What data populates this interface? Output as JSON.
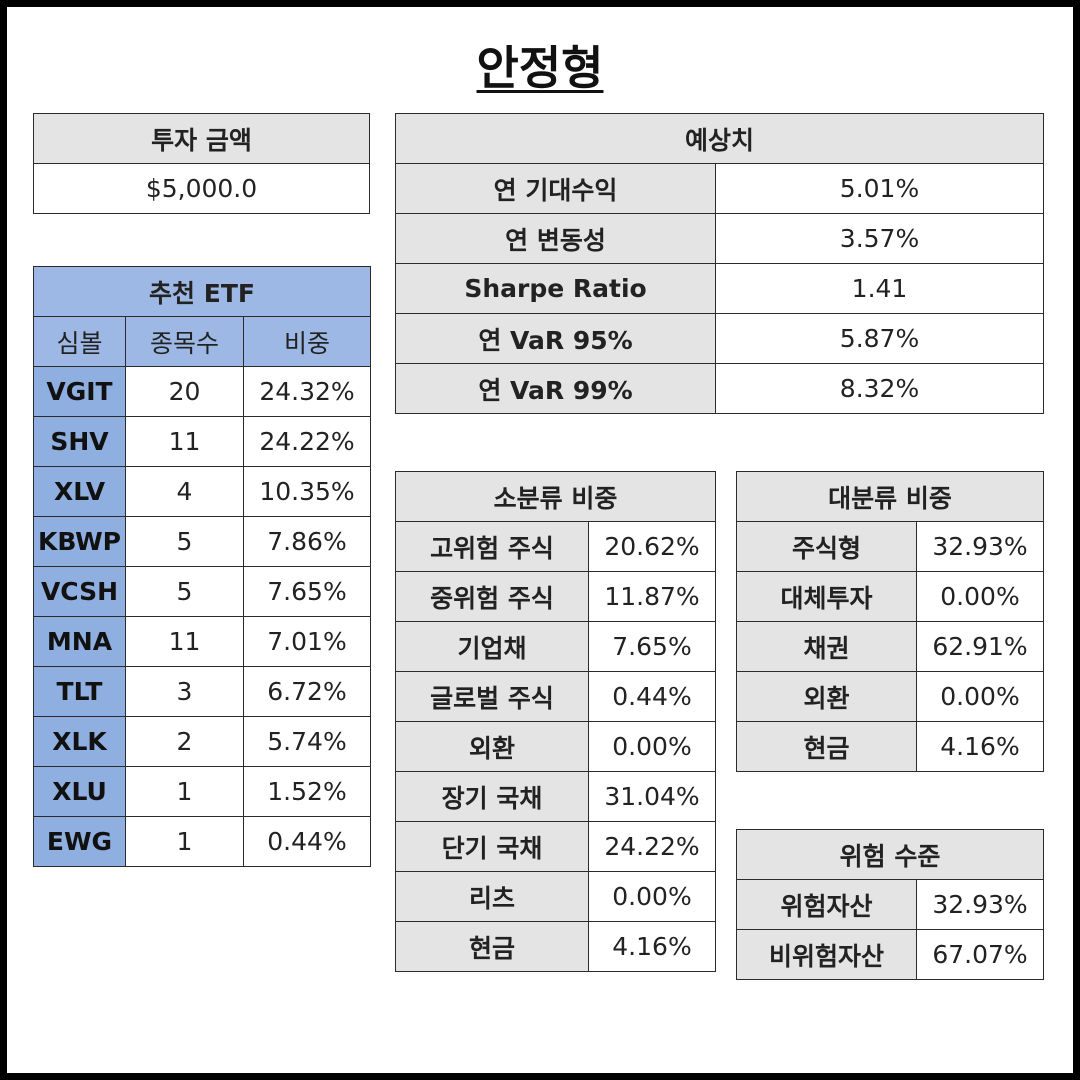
{
  "title": "안정형",
  "investment": {
    "header": "투자 금액",
    "value": "$5,000.0"
  },
  "etf": {
    "header": "추천 ETF",
    "columns": [
      "심볼",
      "종목수",
      "비중"
    ],
    "rows": [
      {
        "symbol": "VGIT",
        "count": "20",
        "weight": "24.32%"
      },
      {
        "symbol": "SHV",
        "count": "11",
        "weight": "24.22%"
      },
      {
        "symbol": "XLV",
        "count": "4",
        "weight": "10.35%"
      },
      {
        "symbol": "KBWP",
        "count": "5",
        "weight": "7.86%"
      },
      {
        "symbol": "VCSH",
        "count": "5",
        "weight": "7.65%"
      },
      {
        "symbol": "MNA",
        "count": "11",
        "weight": "7.01%"
      },
      {
        "symbol": "TLT",
        "count": "3",
        "weight": "6.72%"
      },
      {
        "symbol": "XLK",
        "count": "2",
        "weight": "5.74%"
      },
      {
        "symbol": "XLU",
        "count": "1",
        "weight": "1.52%"
      },
      {
        "symbol": "EWG",
        "count": "1",
        "weight": "0.44%"
      }
    ]
  },
  "forecast": {
    "header": "예상치",
    "rows": [
      {
        "label": "연 기대수익",
        "value": "5.01%"
      },
      {
        "label": "연 변동성",
        "value": "3.57%"
      },
      {
        "label": "Sharpe Ratio",
        "value": "1.41"
      },
      {
        "label": "연 VaR 95%",
        "value": "5.87%"
      },
      {
        "label": "연 VaR 99%",
        "value": "8.32%"
      }
    ]
  },
  "sub_category": {
    "header": "소분류 비중",
    "rows": [
      {
        "label": "고위험 주식",
        "value": "20.62%"
      },
      {
        "label": "중위험 주식",
        "value": "11.87%"
      },
      {
        "label": "기업채",
        "value": "7.65%"
      },
      {
        "label": "글로벌 주식",
        "value": "0.44%"
      },
      {
        "label": "외환",
        "value": "0.00%"
      },
      {
        "label": "장기 국채",
        "value": "31.04%"
      },
      {
        "label": "단기 국채",
        "value": "24.22%"
      },
      {
        "label": "리츠",
        "value": "0.00%"
      },
      {
        "label": "현금",
        "value": "4.16%"
      }
    ]
  },
  "main_category": {
    "header": "대분류 비중",
    "rows": [
      {
        "label": "주식형",
        "value": "32.93%"
      },
      {
        "label": "대체투자",
        "value": "0.00%"
      },
      {
        "label": "채권",
        "value": "62.91%"
      },
      {
        "label": "외환",
        "value": "0.00%"
      },
      {
        "label": "현금",
        "value": "4.16%"
      }
    ]
  },
  "risk": {
    "header": "위험 수준",
    "rows": [
      {
        "label": "위험자산",
        "value": "32.93%"
      },
      {
        "label": "비위험자산",
        "value": "67.07%"
      }
    ]
  }
}
